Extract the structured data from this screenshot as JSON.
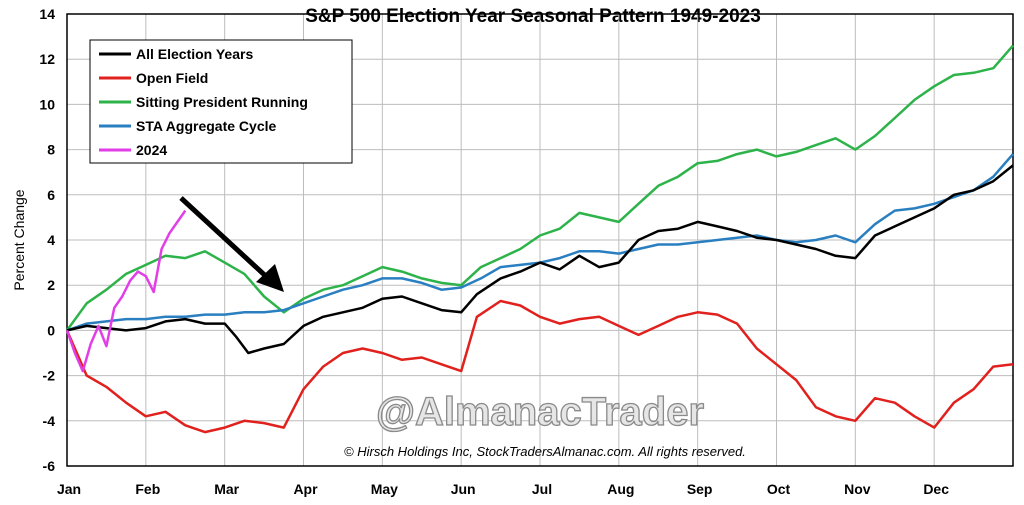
{
  "chart_data": {
    "type": "line",
    "title": "S&P 500 Election Year Seasonal Pattern 1949-2023",
    "xlabel": "",
    "ylabel": "Percent Change",
    "categories": [
      "Jan",
      "Feb",
      "Mar",
      "Apr",
      "May",
      "Jun",
      "Jul",
      "Aug",
      "Sep",
      "Oct",
      "Nov",
      "Dec"
    ],
    "yticks": [
      -6,
      -4,
      -2,
      0,
      2,
      4,
      6,
      8,
      10,
      12,
      14
    ],
    "ylim": [
      -6,
      14
    ],
    "xlim": [
      0,
      12
    ],
    "grid": true,
    "legend_position": "top-left",
    "series": [
      {
        "name": "All Election Years",
        "color": "#000000",
        "points": [
          [
            0,
            0
          ],
          [
            0.25,
            0.2
          ],
          [
            0.5,
            0.1
          ],
          [
            0.75,
            0.0
          ],
          [
            1.0,
            0.1
          ],
          [
            1.25,
            0.4
          ],
          [
            1.5,
            0.5
          ],
          [
            1.75,
            0.3
          ],
          [
            2.0,
            0.3
          ],
          [
            2.15,
            -0.3
          ],
          [
            2.3,
            -1.0
          ],
          [
            2.5,
            -0.8
          ],
          [
            2.75,
            -0.6
          ],
          [
            3.0,
            0.2
          ],
          [
            3.25,
            0.6
          ],
          [
            3.5,
            0.8
          ],
          [
            3.75,
            1.0
          ],
          [
            4.0,
            1.4
          ],
          [
            4.25,
            1.5
          ],
          [
            4.5,
            1.2
          ],
          [
            4.75,
            0.9
          ],
          [
            5.0,
            0.8
          ],
          [
            5.2,
            1.6
          ],
          [
            5.5,
            2.3
          ],
          [
            5.75,
            2.6
          ],
          [
            6.0,
            3.0
          ],
          [
            6.25,
            2.7
          ],
          [
            6.5,
            3.3
          ],
          [
            6.75,
            2.8
          ],
          [
            7.0,
            3.0
          ],
          [
            7.25,
            4.0
          ],
          [
            7.5,
            4.4
          ],
          [
            7.75,
            4.5
          ],
          [
            8.0,
            4.8
          ],
          [
            8.25,
            4.6
          ],
          [
            8.5,
            4.4
          ],
          [
            8.75,
            4.1
          ],
          [
            9.0,
            4.0
          ],
          [
            9.25,
            3.8
          ],
          [
            9.5,
            3.6
          ],
          [
            9.75,
            3.3
          ],
          [
            10.0,
            3.2
          ],
          [
            10.25,
            4.2
          ],
          [
            10.5,
            4.6
          ],
          [
            10.75,
            5.0
          ],
          [
            11.0,
            5.4
          ],
          [
            11.25,
            6.0
          ],
          [
            11.5,
            6.2
          ],
          [
            11.75,
            6.6
          ],
          [
            12.0,
            7.3
          ]
        ]
      },
      {
        "name": "Open Field",
        "color": "#e0211d",
        "points": [
          [
            0,
            0
          ],
          [
            0.25,
            -2.0
          ],
          [
            0.5,
            -2.5
          ],
          [
            0.75,
            -3.2
          ],
          [
            1.0,
            -3.8
          ],
          [
            1.25,
            -3.6
          ],
          [
            1.5,
            -4.2
          ],
          [
            1.75,
            -4.5
          ],
          [
            2.0,
            -4.3
          ],
          [
            2.25,
            -4.0
          ],
          [
            2.5,
            -4.1
          ],
          [
            2.75,
            -4.3
          ],
          [
            3.0,
            -2.6
          ],
          [
            3.25,
            -1.6
          ],
          [
            3.5,
            -1.0
          ],
          [
            3.75,
            -0.8
          ],
          [
            4.0,
            -1.0
          ],
          [
            4.25,
            -1.3
          ],
          [
            4.5,
            -1.2
          ],
          [
            4.75,
            -1.5
          ],
          [
            5.0,
            -1.8
          ],
          [
            5.2,
            0.6
          ],
          [
            5.5,
            1.3
          ],
          [
            5.75,
            1.1
          ],
          [
            6.0,
            0.6
          ],
          [
            6.25,
            0.3
          ],
          [
            6.5,
            0.5
          ],
          [
            6.75,
            0.6
          ],
          [
            7.0,
            0.2
          ],
          [
            7.25,
            -0.2
          ],
          [
            7.5,
            0.2
          ],
          [
            7.75,
            0.6
          ],
          [
            8.0,
            0.8
          ],
          [
            8.25,
            0.7
          ],
          [
            8.5,
            0.3
          ],
          [
            8.75,
            -0.8
          ],
          [
            9.0,
            -1.5
          ],
          [
            9.25,
            -2.2
          ],
          [
            9.5,
            -3.4
          ],
          [
            9.75,
            -3.8
          ],
          [
            10.0,
            -4.0
          ],
          [
            10.25,
            -3.0
          ],
          [
            10.5,
            -3.2
          ],
          [
            10.75,
            -3.8
          ],
          [
            11.0,
            -4.3
          ],
          [
            11.25,
            -3.2
          ],
          [
            11.5,
            -2.6
          ],
          [
            11.75,
            -1.6
          ],
          [
            12.0,
            -1.5
          ]
        ]
      },
      {
        "name": "Sitting President Running",
        "color": "#2db34a",
        "points": [
          [
            0,
            0
          ],
          [
            0.25,
            1.2
          ],
          [
            0.5,
            1.8
          ],
          [
            0.75,
            2.5
          ],
          [
            1.0,
            2.9
          ],
          [
            1.25,
            3.3
          ],
          [
            1.5,
            3.2
          ],
          [
            1.75,
            3.5
          ],
          [
            2.0,
            3.0
          ],
          [
            2.25,
            2.5
          ],
          [
            2.5,
            1.5
          ],
          [
            2.75,
            0.8
          ],
          [
            3.0,
            1.4
          ],
          [
            3.25,
            1.8
          ],
          [
            3.5,
            2.0
          ],
          [
            3.75,
            2.4
          ],
          [
            4.0,
            2.8
          ],
          [
            4.25,
            2.6
          ],
          [
            4.5,
            2.3
          ],
          [
            4.75,
            2.1
          ],
          [
            5.0,
            2.0
          ],
          [
            5.25,
            2.8
          ],
          [
            5.5,
            3.2
          ],
          [
            5.75,
            3.6
          ],
          [
            6.0,
            4.2
          ],
          [
            6.25,
            4.5
          ],
          [
            6.5,
            5.2
          ],
          [
            6.75,
            5.0
          ],
          [
            7.0,
            4.8
          ],
          [
            7.25,
            5.6
          ],
          [
            7.5,
            6.4
          ],
          [
            7.75,
            6.8
          ],
          [
            8.0,
            7.4
          ],
          [
            8.25,
            7.5
          ],
          [
            8.5,
            7.8
          ],
          [
            8.75,
            8.0
          ],
          [
            9.0,
            7.7
          ],
          [
            9.25,
            7.9
          ],
          [
            9.5,
            8.2
          ],
          [
            9.75,
            8.5
          ],
          [
            10.0,
            8.0
          ],
          [
            10.25,
            8.6
          ],
          [
            10.5,
            9.4
          ],
          [
            10.75,
            10.2
          ],
          [
            11.0,
            10.8
          ],
          [
            11.25,
            11.3
          ],
          [
            11.5,
            11.4
          ],
          [
            11.75,
            11.6
          ],
          [
            12.0,
            12.6
          ]
        ]
      },
      {
        "name": "STA Aggregate Cycle",
        "color": "#2a7fc1",
        "points": [
          [
            0,
            0
          ],
          [
            0.25,
            0.3
          ],
          [
            0.5,
            0.4
          ],
          [
            0.75,
            0.5
          ],
          [
            1.0,
            0.5
          ],
          [
            1.25,
            0.6
          ],
          [
            1.5,
            0.6
          ],
          [
            1.75,
            0.7
          ],
          [
            2.0,
            0.7
          ],
          [
            2.25,
            0.8
          ],
          [
            2.5,
            0.8
          ],
          [
            2.75,
            0.9
          ],
          [
            3.0,
            1.2
          ],
          [
            3.25,
            1.5
          ],
          [
            3.5,
            1.8
          ],
          [
            3.75,
            2.0
          ],
          [
            4.0,
            2.3
          ],
          [
            4.25,
            2.3
          ],
          [
            4.5,
            2.1
          ],
          [
            4.75,
            1.8
          ],
          [
            5.0,
            1.9
          ],
          [
            5.25,
            2.3
          ],
          [
            5.5,
            2.8
          ],
          [
            5.75,
            2.9
          ],
          [
            6.0,
            3.0
          ],
          [
            6.25,
            3.2
          ],
          [
            6.5,
            3.5
          ],
          [
            6.75,
            3.5
          ],
          [
            7.0,
            3.4
          ],
          [
            7.25,
            3.6
          ],
          [
            7.5,
            3.8
          ],
          [
            7.75,
            3.8
          ],
          [
            8.0,
            3.9
          ],
          [
            8.25,
            4.0
          ],
          [
            8.5,
            4.1
          ],
          [
            8.75,
            4.2
          ],
          [
            9.0,
            4.0
          ],
          [
            9.25,
            3.9
          ],
          [
            9.5,
            4.0
          ],
          [
            9.75,
            4.2
          ],
          [
            10.0,
            3.9
          ],
          [
            10.25,
            4.7
          ],
          [
            10.5,
            5.3
          ],
          [
            10.75,
            5.4
          ],
          [
            11.0,
            5.6
          ],
          [
            11.25,
            5.9
          ],
          [
            11.5,
            6.2
          ],
          [
            11.75,
            6.8
          ],
          [
            12.0,
            7.8
          ]
        ]
      },
      {
        "name": "2024",
        "color": "#e23ee8",
        "points": [
          [
            0,
            0
          ],
          [
            0.1,
            -1.0
          ],
          [
            0.2,
            -1.8
          ],
          [
            0.3,
            -0.6
          ],
          [
            0.4,
            0.2
          ],
          [
            0.5,
            -0.7
          ],
          [
            0.6,
            1.0
          ],
          [
            0.7,
            1.5
          ],
          [
            0.8,
            2.2
          ],
          [
            0.9,
            2.6
          ],
          [
            1.0,
            2.4
          ],
          [
            1.1,
            1.7
          ],
          [
            1.2,
            3.6
          ],
          [
            1.3,
            4.3
          ],
          [
            1.4,
            4.8
          ],
          [
            1.5,
            5.3
          ]
        ]
      }
    ],
    "annotations": {
      "watermark": "@AlmanacTrader",
      "copyright": "© Hirsch Holdings Inc, StockTradersAlmanac.com. All rights reserved."
    }
  }
}
